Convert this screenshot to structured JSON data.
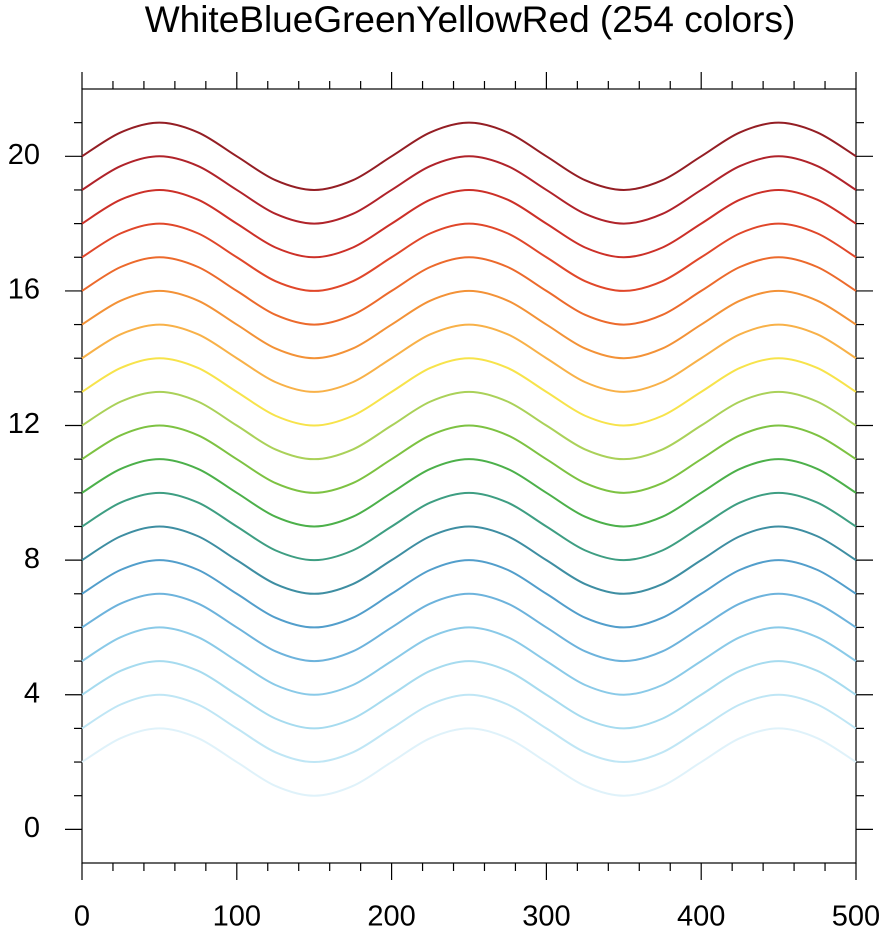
{
  "chart_data": {
    "type": "line",
    "title": "WhiteBlueGreenYellowRed (254 colors)",
    "x": [
      0,
      25,
      50,
      75,
      100,
      125,
      150,
      175,
      200,
      225,
      250,
      275,
      300,
      325,
      350,
      375,
      400,
      425,
      450,
      475,
      500
    ],
    "xlim": [
      0,
      500
    ],
    "xticks": [
      0,
      100,
      200,
      300,
      400,
      500
    ],
    "xminorticks": [
      20,
      40,
      60,
      80,
      120,
      140,
      160,
      180,
      220,
      240,
      260,
      280,
      320,
      340,
      360,
      380,
      420,
      440,
      460,
      480
    ],
    "ylim": [
      -1,
      22
    ],
    "yticks": [
      0,
      4,
      8,
      12,
      16,
      20
    ],
    "yminorticks": [
      1,
      2,
      3,
      5,
      6,
      7,
      9,
      10,
      11,
      13,
      14,
      15,
      17,
      18,
      19,
      21
    ],
    "series": [
      {
        "color": "#dff2fa",
        "values": [
          2,
          2.71,
          3,
          2.71,
          2,
          1.29,
          1,
          1.29,
          2,
          2.71,
          3,
          2.71,
          2,
          1.29,
          1,
          1.29,
          2,
          2.71,
          3,
          2.71,
          2
        ]
      },
      {
        "color": "#bfe6f5",
        "values": [
          3,
          3.71,
          4,
          3.71,
          3,
          2.29,
          2,
          2.29,
          3,
          3.71,
          4,
          3.71,
          3,
          2.29,
          2,
          2.29,
          3,
          3.71,
          4,
          3.71,
          3
        ]
      },
      {
        "color": "#a6dbef",
        "values": [
          4,
          4.71,
          5,
          4.71,
          4,
          3.29,
          3,
          3.29,
          4,
          4.71,
          5,
          4.71,
          4,
          3.29,
          3,
          3.29,
          4,
          4.71,
          5,
          4.71,
          4
        ]
      },
      {
        "color": "#8acae8",
        "values": [
          5,
          5.71,
          6,
          5.71,
          5,
          4.29,
          4,
          4.29,
          5,
          5.71,
          6,
          5.71,
          5,
          4.29,
          4,
          4.29,
          5,
          5.71,
          6,
          5.71,
          5
        ]
      },
      {
        "color": "#6db3dc",
        "values": [
          6,
          6.71,
          7,
          6.71,
          6,
          5.29,
          5,
          5.29,
          6,
          6.71,
          7,
          6.71,
          6,
          5.29,
          5,
          5.29,
          6,
          6.71,
          7,
          6.71,
          6
        ]
      },
      {
        "color": "#529ecb",
        "values": [
          7,
          7.71,
          8,
          7.71,
          7,
          6.29,
          6,
          6.29,
          7,
          7.71,
          8,
          7.71,
          7,
          6.29,
          6,
          6.29,
          7,
          7.71,
          8,
          7.71,
          7
        ]
      },
      {
        "color": "#3e8ea2",
        "values": [
          8,
          8.71,
          9,
          8.71,
          8,
          7.29,
          7,
          7.29,
          8,
          8.71,
          9,
          8.71,
          8,
          7.29,
          7,
          7.29,
          8,
          8.71,
          9,
          8.71,
          8
        ]
      },
      {
        "color": "#3e9e82",
        "values": [
          9,
          9.71,
          10,
          9.71,
          9,
          8.29,
          8,
          8.29,
          9,
          9.71,
          10,
          9.71,
          9,
          8.29,
          8,
          8.29,
          9,
          9.71,
          10,
          9.71,
          9
        ]
      },
      {
        "color": "#4cb04a",
        "values": [
          10,
          10.71,
          11,
          10.71,
          10,
          9.29,
          9,
          9.29,
          10,
          10.71,
          11,
          10.71,
          10,
          9.29,
          9,
          9.29,
          10,
          10.71,
          11,
          10.71,
          10
        ]
      },
      {
        "color": "#7dc242",
        "values": [
          11,
          11.71,
          12,
          11.71,
          11,
          10.29,
          10,
          10.29,
          11,
          11.71,
          12,
          11.71,
          11,
          10.29,
          10,
          10.29,
          11,
          11.71,
          12,
          11.71,
          11
        ]
      },
      {
        "color": "#aad159",
        "values": [
          12,
          12.71,
          13,
          12.71,
          12,
          11.29,
          11,
          11.29,
          12,
          12.71,
          13,
          12.71,
          12,
          11.29,
          11,
          11.29,
          12,
          12.71,
          13,
          12.71,
          12
        ]
      },
      {
        "color": "#f7e34b",
        "values": [
          13,
          13.71,
          14,
          13.71,
          13,
          12.29,
          12,
          12.29,
          13,
          13.71,
          14,
          13.71,
          13,
          12.29,
          12,
          12.29,
          13,
          13.71,
          14,
          13.71,
          13
        ]
      },
      {
        "color": "#f8b148",
        "values": [
          14,
          14.71,
          15,
          14.71,
          14,
          13.29,
          13,
          13.29,
          14,
          14.71,
          15,
          14.71,
          14,
          13.29,
          13,
          13.29,
          14,
          14.71,
          15,
          14.71,
          14
        ]
      },
      {
        "color": "#f39237",
        "values": [
          15,
          15.71,
          16,
          15.71,
          15,
          14.29,
          14,
          14.29,
          15,
          15.71,
          16,
          15.71,
          15,
          14.29,
          14,
          14.29,
          15,
          15.71,
          16,
          15.71,
          15
        ]
      },
      {
        "color": "#ec6a2c",
        "values": [
          16,
          16.71,
          17,
          16.71,
          16,
          15.29,
          15,
          15.29,
          16,
          16.71,
          17,
          16.71,
          16,
          15.29,
          15,
          15.29,
          16,
          16.71,
          17,
          16.71,
          16
        ]
      },
      {
        "color": "#e0472a",
        "values": [
          17,
          17.71,
          18,
          17.71,
          17,
          16.29,
          16,
          16.29,
          17,
          17.71,
          18,
          17.71,
          17,
          16.29,
          16,
          16.29,
          17,
          17.71,
          18,
          17.71,
          17
        ]
      },
      {
        "color": "#cc3028",
        "values": [
          18,
          18.71,
          19,
          18.71,
          18,
          17.29,
          17,
          17.29,
          18,
          18.71,
          19,
          18.71,
          18,
          17.29,
          17,
          17.29,
          18,
          18.71,
          19,
          18.71,
          18
        ]
      },
      {
        "color": "#b0232a",
        "values": [
          19,
          19.71,
          20,
          19.71,
          19,
          18.29,
          18,
          18.29,
          19,
          19.71,
          20,
          19.71,
          19,
          18.29,
          18,
          18.29,
          19,
          19.71,
          20,
          19.71,
          19
        ]
      },
      {
        "color": "#941e24",
        "values": [
          20,
          20.71,
          21,
          20.71,
          20,
          19.29,
          19,
          19.29,
          20,
          20.71,
          21,
          20.71,
          20,
          19.29,
          19,
          19.29,
          20,
          20.71,
          21,
          20.71,
          20
        ]
      }
    ]
  }
}
